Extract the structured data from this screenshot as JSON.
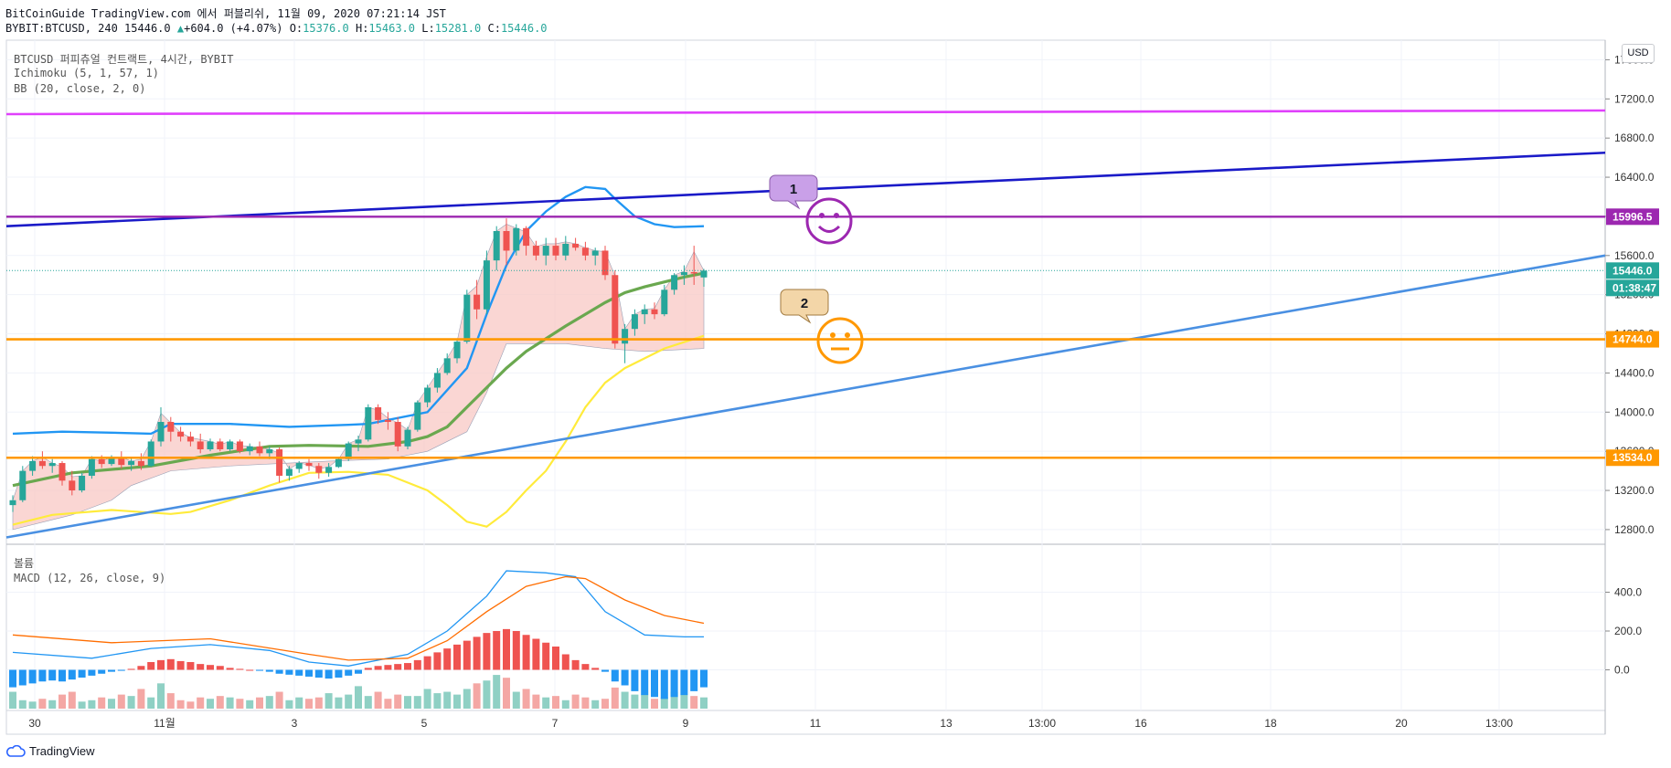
{
  "header": {
    "line1": "BitCoinGuide TradingView.com 에서 퍼블리쉬, 11월 09, 2020 07:21:14 JST",
    "symbol": "BYBIT:BTCUSD, 240 15446.0",
    "change": "+604.0 (+4.07%)",
    "o_label": "O:",
    "o_value": "15376.0",
    "h_label": "H:",
    "h_value": "15463.0",
    "l_label": "L:",
    "l_value": "15281.0",
    "c_label": "C:",
    "c_value": "15446.0"
  },
  "indicators": {
    "title": "BTCUSD 퍼피츄얼 컨트랙트, 4시간, BYBIT",
    "ichimoku": "Ichimoku (5, 1, 57, 1)",
    "bb": "BB (20, close, 2, 0)",
    "volume": "볼륨",
    "macd": "MACD (12, 26, close, 9)"
  },
  "currency": "USD",
  "brand": "TradingView",
  "price_tags": {
    "magenta": "15996.5",
    "last": "15446.0",
    "countdown": "01:38:47",
    "orange1": "14744.0",
    "orange2": "13534.0"
  },
  "annotations": {
    "callout1": "1",
    "callout2": "2"
  },
  "colors": {
    "up": "#26a69a",
    "down": "#ef5350",
    "bb_upper": "#2196f3",
    "bb_lower": "#ffeb3b",
    "ichimoku_base": "#6aa84f",
    "cloud": "#f8c8c4",
    "resistance": "#e040fb",
    "level_purple": "#9c27b0",
    "level_orange": "#ff9800",
    "trend_upper": "#1a1ac8",
    "trend_lower": "#4a90e2",
    "macd_line": "#2196f3",
    "signal_line": "#ff6d00"
  },
  "chart_data": {
    "type": "candlestick",
    "main_y_ticks": [
      "17600.0",
      "17200.0",
      "16800.0",
      "16400.0",
      "16000.0",
      "15600.0",
      "15200.0",
      "14800.0",
      "14400.0",
      "14000.0",
      "13600.0",
      "13200.0",
      "12800.0"
    ],
    "macd_y_ticks": [
      "400.0",
      "200.0",
      "0.0"
    ],
    "x_ticks": [
      "30",
      "11월",
      "3",
      "5",
      "7",
      "9",
      "11",
      "13",
      "13:00",
      "16",
      "18",
      "20",
      "13:00"
    ],
    "ylim": [
      12650,
      17800
    ],
    "candles": [
      [
        13050,
        13150,
        12980,
        13100
      ],
      [
        13100,
        13450,
        13080,
        13400
      ],
      [
        13400,
        13550,
        13350,
        13500
      ],
      [
        13500,
        13600,
        13420,
        13450
      ],
      [
        13450,
        13520,
        13380,
        13480
      ],
      [
        13480,
        13500,
        13250,
        13300
      ],
      [
        13300,
        13400,
        13150,
        13200
      ],
      [
        13200,
        13380,
        13180,
        13350
      ],
      [
        13350,
        13550,
        13320,
        13520
      ],
      [
        13520,
        13560,
        13430,
        13470
      ],
      [
        13470,
        13560,
        13450,
        13540
      ],
      [
        13540,
        13600,
        13420,
        13460
      ],
      [
        13460,
        13530,
        13400,
        13500
      ],
      [
        13500,
        13580,
        13410,
        13450
      ],
      [
        13450,
        13720,
        13440,
        13700
      ],
      [
        13700,
        14050,
        13650,
        13900
      ],
      [
        13900,
        13950,
        13700,
        13800
      ],
      [
        13800,
        13850,
        13700,
        13750
      ],
      [
        13750,
        13800,
        13650,
        13700
      ],
      [
        13700,
        13780,
        13580,
        13620
      ],
      [
        13620,
        13730,
        13600,
        13700
      ],
      [
        13700,
        13730,
        13600,
        13620
      ],
      [
        13620,
        13720,
        13600,
        13700
      ],
      [
        13700,
        13720,
        13580,
        13600
      ],
      [
        13600,
        13680,
        13560,
        13650
      ],
      [
        13650,
        13700,
        13550,
        13580
      ],
      [
        13580,
        13650,
        13520,
        13620
      ],
      [
        13620,
        13640,
        13280,
        13350
      ],
      [
        13350,
        13450,
        13300,
        13420
      ],
      [
        13420,
        13500,
        13380,
        13480
      ],
      [
        13480,
        13520,
        13400,
        13450
      ],
      [
        13450,
        13480,
        13320,
        13380
      ],
      [
        13380,
        13480,
        13340,
        13440
      ],
      [
        13440,
        13540,
        13430,
        13520
      ],
      [
        13520,
        13700,
        13500,
        13680
      ],
      [
        13680,
        13760,
        13600,
        13720
      ],
      [
        13720,
        14080,
        13700,
        14050
      ],
      [
        14050,
        14080,
        13880,
        13920
      ],
      [
        13920,
        14000,
        13820,
        13900
      ],
      [
        13900,
        13950,
        13600,
        13650
      ],
      [
        13650,
        13850,
        13620,
        13820
      ],
      [
        13820,
        14120,
        13800,
        14100
      ],
      [
        14100,
        14280,
        14050,
        14250
      ],
      [
        14250,
        14450,
        14200,
        14400
      ],
      [
        14400,
        14600,
        14380,
        14550
      ],
      [
        14550,
        14750,
        14500,
        14720
      ],
      [
        14720,
        15250,
        14700,
        15200
      ],
      [
        15200,
        15350,
        14950,
        15050
      ],
      [
        15050,
        15650,
        15000,
        15550
      ],
      [
        15550,
        15900,
        15450,
        15850
      ],
      [
        15850,
        15980,
        15500,
        15650
      ],
      [
        15650,
        15920,
        15600,
        15880
      ],
      [
        15880,
        15900,
        15600,
        15700
      ],
      [
        15700,
        15750,
        15550,
        15600
      ],
      [
        15600,
        15780,
        15500,
        15700
      ],
      [
        15700,
        15780,
        15550,
        15600
      ],
      [
        15600,
        15800,
        15550,
        15720
      ],
      [
        15720,
        15780,
        15650,
        15680
      ],
      [
        15680,
        15740,
        15550,
        15600
      ],
      [
        15600,
        15680,
        15500,
        15650
      ],
      [
        15650,
        15700,
        15350,
        15400
      ],
      [
        15400,
        15450,
        14650,
        14700
      ],
      [
        14700,
        14900,
        14500,
        14850
      ],
      [
        14850,
        15050,
        14780,
        15000
      ],
      [
        15000,
        15100,
        14900,
        15050
      ],
      [
        15050,
        15120,
        14950,
        15000
      ],
      [
        15000,
        15300,
        14980,
        15250
      ],
      [
        15250,
        15420,
        15200,
        15400
      ],
      [
        15400,
        15500,
        15300,
        15430
      ],
      [
        15430,
        15700,
        15300,
        15420
      ],
      [
        15376,
        15463,
        15281,
        15446
      ]
    ],
    "bb_upper": [
      [
        0,
        13780
      ],
      [
        5,
        13800
      ],
      [
        10,
        13790
      ],
      [
        14,
        13780
      ],
      [
        16,
        13880
      ],
      [
        22,
        13880
      ],
      [
        28,
        13850
      ],
      [
        34,
        13870
      ],
      [
        36,
        13880
      ],
      [
        42,
        14000
      ],
      [
        46,
        14450
      ],
      [
        48,
        15000
      ],
      [
        50,
        15500
      ],
      [
        52,
        15850
      ],
      [
        54,
        16050
      ],
      [
        56,
        16200
      ],
      [
        58,
        16300
      ],
      [
        60,
        16280
      ],
      [
        61,
        16180
      ],
      [
        63,
        16000
      ],
      [
        65,
        15920
      ],
      [
        67,
        15890
      ],
      [
        70,
        15900
      ]
    ],
    "bb_lower": [
      [
        0,
        12850
      ],
      [
        4,
        12950
      ],
      [
        10,
        13000
      ],
      [
        16,
        12960
      ],
      [
        18,
        12980
      ],
      [
        22,
        13100
      ],
      [
        26,
        13250
      ],
      [
        30,
        13380
      ],
      [
        34,
        13390
      ],
      [
        38,
        13360
      ],
      [
        42,
        13200
      ],
      [
        44,
        13050
      ],
      [
        46,
        12880
      ],
      [
        48,
        12830
      ],
      [
        50,
        12980
      ],
      [
        52,
        13200
      ],
      [
        54,
        13400
      ],
      [
        56,
        13700
      ],
      [
        58,
        14050
      ],
      [
        60,
        14300
      ],
      [
        62,
        14450
      ],
      [
        66,
        14650
      ],
      [
        70,
        14780
      ]
    ],
    "ichimoku_base": [
      [
        0,
        13250
      ],
      [
        6,
        13380
      ],
      [
        14,
        13450
      ],
      [
        20,
        13560
      ],
      [
        26,
        13650
      ],
      [
        30,
        13660
      ],
      [
        36,
        13650
      ],
      [
        40,
        13700
      ],
      [
        42,
        13750
      ],
      [
        44,
        13850
      ],
      [
        46,
        14050
      ],
      [
        48,
        14250
      ],
      [
        50,
        14450
      ],
      [
        52,
        14620
      ],
      [
        54,
        14750
      ],
      [
        56,
        14880
      ],
      [
        58,
        15000
      ],
      [
        60,
        15120
      ],
      [
        62,
        15220
      ],
      [
        64,
        15280
      ],
      [
        68,
        15380
      ],
      [
        70,
        15420
      ]
    ],
    "cloud_bottom": [
      [
        0,
        12800
      ],
      [
        6,
        12950
      ],
      [
        10,
        13100
      ],
      [
        12,
        13250
      ],
      [
        16,
        13400
      ],
      [
        22,
        13450
      ],
      [
        28,
        13480
      ],
      [
        32,
        13500
      ],
      [
        38,
        13520
      ],
      [
        42,
        13600
      ],
      [
        46,
        13800
      ],
      [
        48,
        14200
      ],
      [
        50,
        14700
      ],
      [
        56,
        14700
      ],
      [
        60,
        14650
      ],
      [
        64,
        14620
      ],
      [
        70,
        14650
      ]
    ],
    "trend_upper": [
      [
        0,
        15900
      ],
      [
        150,
        16650
      ]
    ],
    "trend_lower": [
      [
        0,
        12720
      ],
      [
        150,
        15600
      ]
    ],
    "levels": {
      "resistance_magenta": 17050,
      "purple": 15996.5,
      "orange_upper": 14744,
      "orange_lower": 13534
    },
    "macd": [
      [
        0,
        90
      ],
      [
        8,
        60
      ],
      [
        14,
        110
      ],
      [
        20,
        130
      ],
      [
        26,
        100
      ],
      [
        30,
        40
      ],
      [
        34,
        20
      ],
      [
        40,
        80
      ],
      [
        44,
        200
      ],
      [
        48,
        380
      ],
      [
        50,
        510
      ],
      [
        54,
        500
      ],
      [
        57,
        480
      ],
      [
        60,
        300
      ],
      [
        64,
        180
      ],
      [
        68,
        170
      ],
      [
        70,
        170
      ]
    ],
    "signal": [
      [
        0,
        180
      ],
      [
        10,
        140
      ],
      [
        20,
        160
      ],
      [
        30,
        80
      ],
      [
        34,
        50
      ],
      [
        40,
        60
      ],
      [
        44,
        150
      ],
      [
        48,
        300
      ],
      [
        52,
        430
      ],
      [
        56,
        480
      ],
      [
        58,
        470
      ],
      [
        62,
        360
      ],
      [
        66,
        280
      ],
      [
        70,
        240
      ]
    ],
    "histogram": [
      -90,
      -80,
      -70,
      -60,
      -55,
      -60,
      -50,
      -40,
      -30,
      -20,
      -10,
      -5,
      5,
      20,
      40,
      50,
      55,
      45,
      40,
      30,
      25,
      20,
      10,
      5,
      0,
      -5,
      -10,
      -20,
      -25,
      -30,
      -35,
      -40,
      -45,
      -40,
      -30,
      -20,
      10,
      20,
      25,
      30,
      35,
      50,
      70,
      90,
      110,
      130,
      150,
      170,
      190,
      200,
      210,
      200,
      180,
      160,
      140,
      120,
      80,
      50,
      30,
      10,
      -10,
      -60,
      -80,
      -110,
      -130,
      -140,
      -150,
      -140,
      -130,
      -110,
      -90
    ],
    "volume": [
      60,
      30,
      25,
      35,
      30,
      50,
      60,
      25,
      30,
      40,
      35,
      50,
      45,
      70,
      40,
      90,
      55,
      30,
      25,
      40,
      35,
      45,
      40,
      35,
      30,
      40,
      45,
      60,
      30,
      40,
      35,
      40,
      55,
      40,
      50,
      80,
      45,
      60,
      35,
      50,
      45,
      45,
      70,
      55,
      60,
      50,
      70,
      90,
      100,
      120,
      110,
      60,
      70,
      50,
      40,
      45,
      30,
      50,
      40,
      30,
      35,
      75,
      60,
      50,
      50,
      35,
      40,
      60,
      50,
      45,
      40
    ]
  },
  "chart_data_labels": {
    "vol_bar_up_color": "#8fd0c4",
    "vol_bar_down_color": "#f4a7a4"
  }
}
